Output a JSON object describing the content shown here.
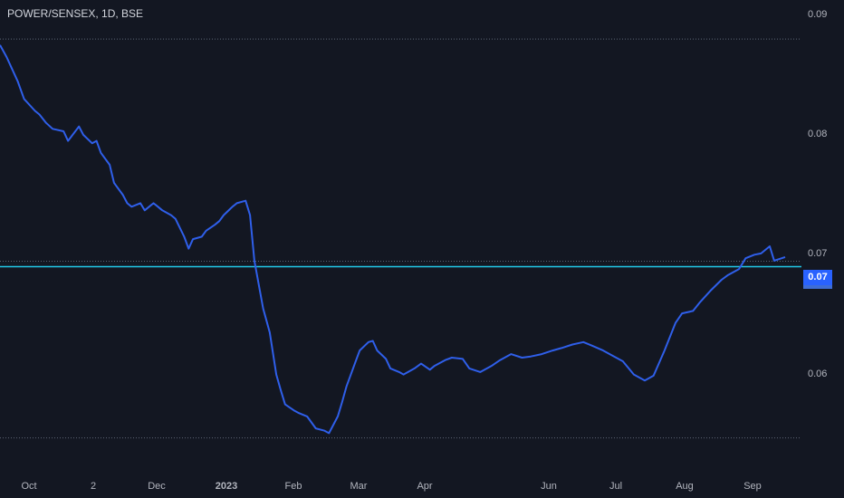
{
  "header": {
    "symbol_title": "POWER/SENSEX, 1D, BSE"
  },
  "current_price": {
    "label": "0.07",
    "value": 0.0695,
    "tag_color": "#2962ff"
  },
  "colors": {
    "background": "#131722",
    "line": "#2f5fea",
    "price_line": "#22c8e8",
    "grid": "#5d6575",
    "text": "#b2b5be"
  },
  "chart_data": {
    "type": "line",
    "title": "POWER/SENSEX, 1D, BSE",
    "xlabel": "",
    "ylabel": "",
    "x_tick_labels": [
      "Oct",
      "2",
      "Dec",
      "2023",
      "Feb",
      "Mar",
      "Apr",
      "Jun",
      "Jul",
      "Aug",
      "Sep"
    ],
    "y_tick_labels": [
      "0.09",
      "0.08",
      "0.07",
      "0.06"
    ],
    "ylim": [
      0.0551,
      0.0907
    ],
    "horizontal_dotted_levels": [
      0.0885,
      0.0552
    ],
    "current_price_line": 0.0695,
    "series": [
      {
        "x": [
          "2022-09-26",
          "2022-09-29",
          "2022-10-04",
          "2022-10-07",
          "2022-10-12",
          "2022-10-14",
          "2022-10-17",
          "2022-10-20",
          "2022-10-25",
          "2022-10-27",
          "2022-11-01",
          "2022-11-03",
          "2022-11-07",
          "2022-11-09",
          "2022-11-11",
          "2022-11-15",
          "2022-11-17",
          "2022-11-21",
          "2022-11-23",
          "2022-11-25",
          "2022-11-29",
          "2022-12-01",
          "2022-12-05",
          "2022-12-07",
          "2022-12-09",
          "2022-12-13",
          "2022-12-15",
          "2022-12-19",
          "2022-12-21",
          "2022-12-23",
          "2022-12-27",
          "2022-12-29",
          "2023-01-02",
          "2023-01-04",
          "2023-01-06",
          "2023-01-10",
          "2023-01-12",
          "2023-01-16",
          "2023-01-18",
          "2023-01-20",
          "2023-01-24",
          "2023-01-27",
          "2023-01-30",
          "2023-02-01",
          "2023-02-03",
          "2023-02-07",
          "2023-02-09",
          "2023-02-13",
          "2023-02-15",
          "2023-02-17",
          "2023-02-21",
          "2023-02-23",
          "2023-02-27",
          "2023-03-01",
          "2023-03-03",
          "2023-03-07",
          "2023-03-09",
          "2023-03-13",
          "2023-03-15",
          "2023-03-17",
          "2023-03-21",
          "2023-03-23",
          "2023-03-27",
          "2023-03-29",
          "2023-04-03",
          "2023-04-06",
          "2023-04-10",
          "2023-04-12",
          "2023-04-17",
          "2023-04-20",
          "2023-04-25",
          "2023-04-28",
          "2023-05-03",
          "2023-05-08",
          "2023-05-12",
          "2023-05-17",
          "2023-05-22",
          "2023-05-26",
          "2023-05-31",
          "2023-06-05",
          "2023-06-09",
          "2023-06-14",
          "2023-06-19",
          "2023-06-23",
          "2023-06-28",
          "2023-07-03",
          "2023-07-07",
          "2023-07-12",
          "2023-07-17",
          "2023-07-21",
          "2023-07-26",
          "2023-07-31",
          "2023-08-03",
          "2023-08-08",
          "2023-08-11",
          "2023-08-16",
          "2023-08-21",
          "2023-08-24",
          "2023-08-29",
          "2023-09-01",
          "2023-09-05",
          "2023-09-08",
          "2023-09-12",
          "2023-09-14",
          "2023-09-19"
        ],
        "y": [
          0.088,
          0.087,
          0.085,
          0.0835,
          0.0825,
          0.0822,
          0.0815,
          0.081,
          0.0808,
          0.08,
          0.0812,
          0.0805,
          0.0798,
          0.08,
          0.079,
          0.078,
          0.0765,
          0.0755,
          0.0748,
          0.0745,
          0.0748,
          0.0742,
          0.0748,
          0.0745,
          0.0742,
          0.0738,
          0.0735,
          0.072,
          0.071,
          0.0718,
          0.072,
          0.0725,
          0.073,
          0.0733,
          0.0738,
          0.0745,
          0.0748,
          0.075,
          0.0738,
          0.07,
          0.066,
          0.064,
          0.0605,
          0.0592,
          0.058,
          0.0575,
          0.0573,
          0.057,
          0.0565,
          0.056,
          0.0558,
          0.0556,
          0.057,
          0.0582,
          0.0595,
          0.0615,
          0.0625,
          0.0632,
          0.0633,
          0.0625,
          0.0618,
          0.061,
          0.0607,
          0.0605,
          0.061,
          0.0614,
          0.0609,
          0.0612,
          0.0617,
          0.0619,
          0.0618,
          0.061,
          0.0607,
          0.0612,
          0.0617,
          0.0622,
          0.0619,
          0.062,
          0.0622,
          0.0625,
          0.0627,
          0.063,
          0.0632,
          0.0629,
          0.0625,
          0.062,
          0.0616,
          0.0605,
          0.06,
          0.0604,
          0.0625,
          0.0648,
          0.0656,
          0.0658,
          0.0665,
          0.0675,
          0.0684,
          0.0688,
          0.0693,
          0.0702,
          0.0705,
          0.0706,
          0.0712,
          0.07,
          0.0703
        ]
      }
    ]
  }
}
